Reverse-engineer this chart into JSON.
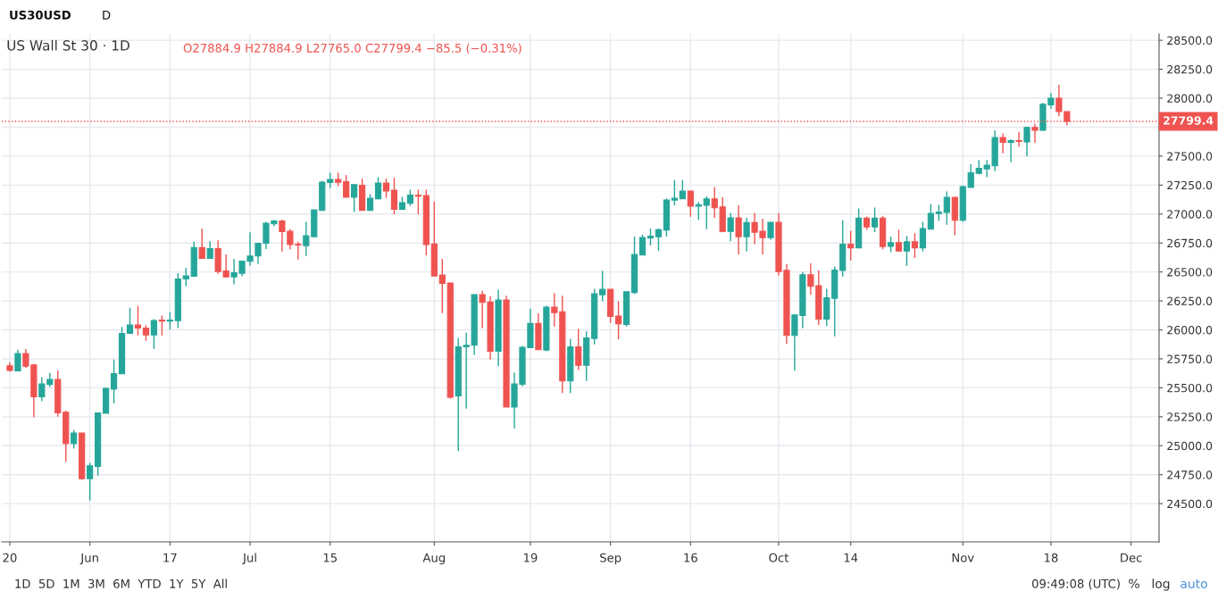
{
  "chart_data": {
    "type": "candlestick",
    "title": "US Wall St 30 · 1D",
    "annotations": [
      "O27884.9 H27884.9 L27765.0 C27799.4 −85.5 (−0.31%)",
      "US30USD",
      "D",
      "1D  5D  1M  3M  6M  YTD  1Y  5Y  All",
      "09:49:08 (UTC)",
      "%",
      "log",
      "auto"
    ],
    "categories": [
      "20",
      null,
      null,
      null,
      null,
      null,
      null,
      null,
      null,
      null,
      "Jun",
      null,
      null,
      null,
      null,
      null,
      null,
      null,
      null,
      null,
      "17",
      null,
      null,
      null,
      null,
      null,
      null,
      null,
      null,
      null,
      "Jul",
      null,
      null,
      null,
      null,
      null,
      null,
      null,
      null,
      null,
      "15",
      null,
      null,
      null,
      null,
      null,
      null,
      null,
      null,
      null,
      null,
      null,
      null,
      "Aug",
      null,
      null,
      null,
      null,
      null,
      null,
      null,
      null,
      null,
      null,
      null,
      "19",
      null,
      null,
      null,
      null,
      null,
      null,
      null,
      null,
      null,
      "Sep",
      null,
      null,
      null,
      null,
      null,
      null,
      null,
      null,
      null,
      "16",
      null,
      null,
      null,
      null,
      null,
      null,
      null,
      null,
      null,
      null,
      "Oct",
      null,
      null,
      null,
      null,
      null,
      null,
      null,
      null,
      "14",
      null,
      null,
      null,
      null,
      null,
      null,
      null,
      null,
      null,
      null,
      null,
      null,
      null,
      "Nov",
      null,
      null,
      null,
      null,
      null,
      null,
      null,
      null,
      null,
      null,
      "18",
      null,
      null,
      null,
      null,
      null,
      null,
      null,
      null,
      null,
      "Dec",
      null,
      null,
      null
    ],
    "ohlc": [
      [
        25690,
        25720,
        25640,
        25650
      ],
      [
        25646,
        25829,
        25646,
        25795
      ],
      [
        25795,
        25834,
        25670,
        25687
      ],
      [
        25698,
        25705,
        25246,
        25423
      ],
      [
        25423,
        25590,
        25384,
        25533
      ],
      [
        25528,
        25628,
        25508,
        25572
      ],
      [
        25572,
        25649,
        25251,
        25284
      ],
      [
        25289,
        25302,
        24860,
        25019
      ],
      [
        25019,
        25135,
        24976,
        25109
      ],
      [
        25109,
        25109,
        24706,
        24716
      ],
      [
        24716,
        24852,
        24526,
        24827
      ],
      [
        24822,
        25284,
        24742,
        25284
      ],
      [
        25281,
        25502,
        25281,
        25495
      ],
      [
        25489,
        25744,
        25366,
        25623
      ],
      [
        25621,
        26026,
        25621,
        25970
      ],
      [
        25970,
        26191,
        25970,
        26042
      ],
      [
        26042,
        26209,
        25952,
        26016
      ],
      [
        26016,
        26042,
        25906,
        25957
      ],
      [
        25957,
        26093,
        25836,
        26080
      ],
      [
        26085,
        26124,
        25952,
        26075
      ],
      [
        26075,
        26155,
        26003,
        26085
      ],
      [
        26080,
        26489,
        26016,
        26440
      ],
      [
        26440,
        26535,
        26376,
        26466
      ],
      [
        26463,
        26761,
        26463,
        26710
      ],
      [
        26710,
        26874,
        26617,
        26617
      ],
      [
        26617,
        26766,
        26617,
        26702
      ],
      [
        26702,
        26772,
        26484,
        26504
      ],
      [
        26509,
        26651,
        26453,
        26458
      ],
      [
        26458,
        26612,
        26394,
        26494
      ],
      [
        26489,
        26594,
        26463,
        26594
      ],
      [
        26592,
        26843,
        26556,
        26638
      ],
      [
        26638,
        26748,
        26569,
        26748
      ],
      [
        26748,
        26933,
        26697,
        26920
      ],
      [
        26915,
        26951,
        26895,
        26941
      ],
      [
        26941,
        26951,
        26676,
        26848
      ],
      [
        26851,
        26869,
        26694,
        26736
      ],
      [
        26740,
        26761,
        26607,
        26733
      ],
      [
        26728,
        26933,
        26638,
        26813
      ],
      [
        26805,
        27036,
        26805,
        27036
      ],
      [
        27031,
        27288,
        27031,
        27275
      ],
      [
        27272,
        27357,
        27223,
        27298
      ],
      [
        27298,
        27357,
        27241,
        27275
      ],
      [
        27280,
        27336,
        27146,
        27146
      ],
      [
        27146,
        27254,
        27018,
        27254
      ],
      [
        27249,
        27306,
        27031,
        27031
      ],
      [
        27031,
        27172,
        27031,
        27136
      ],
      [
        27131,
        27318,
        27126,
        27267
      ],
      [
        27267,
        27306,
        27139,
        27200
      ],
      [
        27205,
        27313,
        26997,
        27041
      ],
      [
        27041,
        27149,
        27036,
        27098
      ],
      [
        27093,
        27211,
        27069,
        27164
      ],
      [
        27162,
        27211,
        26997,
        27154
      ],
      [
        27159,
        27211,
        26643,
        26736
      ],
      [
        26741,
        27108,
        26466,
        26466
      ],
      [
        26473,
        26612,
        26145,
        26402
      ],
      [
        26404,
        26404,
        25405,
        25418
      ],
      [
        25431,
        25931,
        24955,
        25854
      ],
      [
        25854,
        25975,
        25320,
        25867
      ],
      [
        25867,
        26304,
        25782,
        26304
      ],
      [
        26304,
        26337,
        26014,
        26237
      ],
      [
        26240,
        26291,
        25744,
        25816
      ],
      [
        25816,
        26348,
        25687,
        26258
      ],
      [
        26258,
        26296,
        25335,
        25335
      ],
      [
        25335,
        25631,
        25148,
        25533
      ],
      [
        25530,
        25862,
        25513,
        25849
      ],
      [
        25847,
        26183,
        25847,
        26055
      ],
      [
        26055,
        26142,
        25829,
        25829
      ],
      [
        25826,
        26209,
        25816,
        26196
      ],
      [
        26196,
        26317,
        26029,
        26150
      ],
      [
        26155,
        26296,
        25456,
        25559
      ],
      [
        25559,
        25924,
        25456,
        25854
      ],
      [
        25854,
        26009,
        25654,
        25695
      ],
      [
        25695,
        25988,
        25559,
        25931
      ],
      [
        25926,
        26355,
        25875,
        26312
      ],
      [
        26304,
        26510,
        26247,
        26350
      ],
      [
        26350,
        26350,
        26060,
        26116
      ],
      [
        26119,
        26247,
        25919,
        26052
      ],
      [
        26047,
        26330,
        26029,
        26330
      ],
      [
        26322,
        26805,
        26309,
        26651
      ],
      [
        26646,
        26823,
        26646,
        26797
      ],
      [
        26792,
        26874,
        26728,
        26810
      ],
      [
        26805,
        26877,
        26684,
        26864
      ],
      [
        26861,
        27134,
        26805,
        27121
      ],
      [
        27121,
        27293,
        27075,
        27136
      ],
      [
        27131,
        27293,
        27131,
        27198
      ],
      [
        27198,
        27198,
        26977,
        27069
      ],
      [
        27069,
        27105,
        26951,
        27080
      ],
      [
        27075,
        27152,
        26869,
        27131
      ],
      [
        27131,
        27234,
        26967,
        27054
      ],
      [
        27062,
        27144,
        26843,
        26851
      ],
      [
        26851,
        27010,
        26766,
        26967
      ],
      [
        26967,
        27075,
        26651,
        26805
      ],
      [
        26805,
        26967,
        26676,
        26926
      ],
      [
        26926,
        27010,
        26741,
        26843
      ],
      [
        26851,
        26959,
        26651,
        26797
      ],
      [
        26797,
        26933,
        26779,
        26928
      ],
      [
        26928,
        27010,
        26471,
        26504
      ],
      [
        26515,
        26569,
        25880,
        25952
      ],
      [
        25952,
        26129,
        25649,
        26129
      ],
      [
        26124,
        26502,
        26014,
        26476
      ],
      [
        26476,
        26574,
        26304,
        26376
      ],
      [
        26381,
        26514,
        26042,
        26093
      ],
      [
        26093,
        26355,
        26034,
        26278
      ],
      [
        26273,
        26548,
        25944,
        26517
      ],
      [
        26514,
        26946,
        26458,
        26740
      ],
      [
        26740,
        26856,
        26599,
        26707
      ],
      [
        26707,
        27049,
        26707,
        26966
      ],
      [
        26966,
        26979,
        26864,
        26889
      ],
      [
        26889,
        27056,
        26843,
        26966
      ],
      [
        26966,
        26984,
        26694,
        26720
      ],
      [
        26722,
        26804,
        26671,
        26753
      ],
      [
        26753,
        26864,
        26676,
        26681
      ],
      [
        26681,
        26812,
        26553,
        26761
      ],
      [
        26761,
        26835,
        26620,
        26707
      ],
      [
        26707,
        26933,
        26676,
        26874
      ],
      [
        26869,
        27087,
        26869,
        27005
      ],
      [
        27005,
        27080,
        26941,
        27018
      ],
      [
        27015,
        27195,
        26907,
        27144
      ],
      [
        27144,
        27144,
        26817,
        26946
      ],
      [
        26946,
        27246,
        26933,
        27236
      ],
      [
        27229,
        27429,
        27229,
        27357
      ],
      [
        27352,
        27467,
        27344,
        27395
      ],
      [
        27390,
        27467,
        27318,
        27421
      ],
      [
        27416,
        27722,
        27370,
        27660
      ],
      [
        27660,
        27696,
        27524,
        27619
      ],
      [
        27619,
        27645,
        27447,
        27634
      ],
      [
        27634,
        27709,
        27583,
        27627
      ],
      [
        27622,
        27755,
        27498,
        27747
      ],
      [
        27747,
        27781,
        27614,
        27724
      ],
      [
        27724,
        27960,
        27716,
        27948
      ],
      [
        27943,
        28045,
        27909,
        28000
      ],
      [
        28000,
        28115,
        27845,
        27885
      ],
      [
        27884.9,
        27884.9,
        27765.0,
        27799.4
      ],
      null,
      null,
      null,
      null,
      null,
      null,
      null,
      null,
      null,
      null,
      null
    ],
    "colors": [
      "#ef5350",
      "#26a69a",
      "#ef5350",
      "#ef5350",
      "#26a69a",
      "#26a69a",
      "#ef5350",
      "#ef5350",
      "#26a69a",
      "#ef5350",
      "#26a69a",
      "#26a69a",
      "#26a69a",
      "#26a69a",
      "#26a69a",
      "#26a69a",
      "#ef5350",
      "#ef5350",
      "#26a69a",
      "#ef5350",
      "#26a69a",
      "#26a69a",
      "#26a69a",
      "#26a69a",
      "#ef5350",
      "#26a69a",
      "#ef5350",
      "#ef5350",
      "#26a69a",
      "#26a69a",
      "#26a69a",
      "#26a69a",
      "#26a69a",
      "#26a69a",
      "#ef5350",
      "#ef5350",
      "#ef5350",
      "#26a69a",
      "#26a69a",
      "#26a69a",
      "#26a69a",
      "#ef5350",
      "#ef5350",
      "#26a69a",
      "#ef5350",
      "#26a69a",
      "#26a69a",
      "#ef5350",
      "#ef5350",
      "#26a69a",
      "#26a69a",
      "#ef5350",
      "#ef5350",
      "#ef5350",
      "#ef5350",
      "#ef5350",
      "#26a69a",
      "#26a69a",
      "#26a69a",
      "#ef5350",
      "#ef5350",
      "#26a69a",
      "#ef5350",
      "#26a69a",
      "#26a69a",
      "#26a69a",
      "#ef5350",
      "#26a69a",
      "#ef5350",
      "#ef5350",
      "#26a69a",
      "#ef5350",
      "#26a69a",
      "#26a69a",
      "#26a69a",
      "#ef5350",
      "#ef5350",
      "#26a69a",
      "#26a69a",
      "#26a69a",
      "#26a69a",
      "#26a69a",
      "#26a69a",
      "#26a69a",
      "#26a69a",
      "#ef5350",
      "#26a69a",
      "#26a69a",
      "#ef5350",
      "#ef5350",
      "#26a69a",
      "#ef5350",
      "#26a69a",
      "#ef5350",
      "#ef5350",
      "#26a69a",
      "#ef5350",
      "#ef5350",
      "#26a69a",
      "#26a69a",
      "#ef5350",
      "#ef5350",
      "#26a69a",
      "#26a69a",
      "#26a69a",
      "#ef5350",
      "#26a69a",
      "#ef5350",
      "#26a69a",
      "#ef5350",
      "#26a69a",
      "#ef5350",
      "#26a69a",
      "#ef5350",
      "#26a69a",
      "#26a69a",
      "#26a69a",
      "#26a69a",
      "#ef5350",
      "#26a69a",
      "#26a69a",
      "#26a69a",
      "#26a69a",
      "#26a69a",
      "#ef5350",
      "#26a69a",
      "#ef5350",
      "#26a69a",
      "#ef5350",
      "#26a69a",
      "#26a69a",
      "#ef5350",
      "#ef5350",
      null,
      null,
      null,
      null,
      null,
      null,
      null,
      null,
      null,
      null,
      null
    ],
    "ylim": [
      24170,
      28555
    ],
    "yticks": [
      {
        "value": 24500,
        "label": "24500.0"
      },
      {
        "value": 24750,
        "label": "24750.0"
      },
      {
        "value": 25000,
        "label": "25000.0"
      },
      {
        "value": 25250,
        "label": "25250.0"
      },
      {
        "value": 25500,
        "label": "25500.0"
      },
      {
        "value": 25750,
        "label": "25750.0"
      },
      {
        "value": 26000,
        "label": "26000.0"
      },
      {
        "value": 26250,
        "label": "26250.0"
      },
      {
        "value": 26500,
        "label": "26500.0"
      },
      {
        "value": 26750,
        "label": "26750.0"
      },
      {
        "value": 27000,
        "label": "27000.0"
      },
      {
        "value": 27250,
        "label": "27250.0"
      },
      {
        "value": 27500,
        "label": "27500.0"
      },
      {
        "value": 27750,
        "label": null
      },
      {
        "value": 28000,
        "label": "28000.0"
      },
      {
        "value": 28250,
        "label": "28250.0"
      },
      {
        "value": 28500,
        "label": "28500.0"
      }
    ],
    "ref_lines": [
      {
        "axis": "y",
        "value": 27799.4,
        "label": "27799.4",
        "color": "#ef5350",
        "line_style": "dotted"
      }
    ],
    "grid": true
  }
}
